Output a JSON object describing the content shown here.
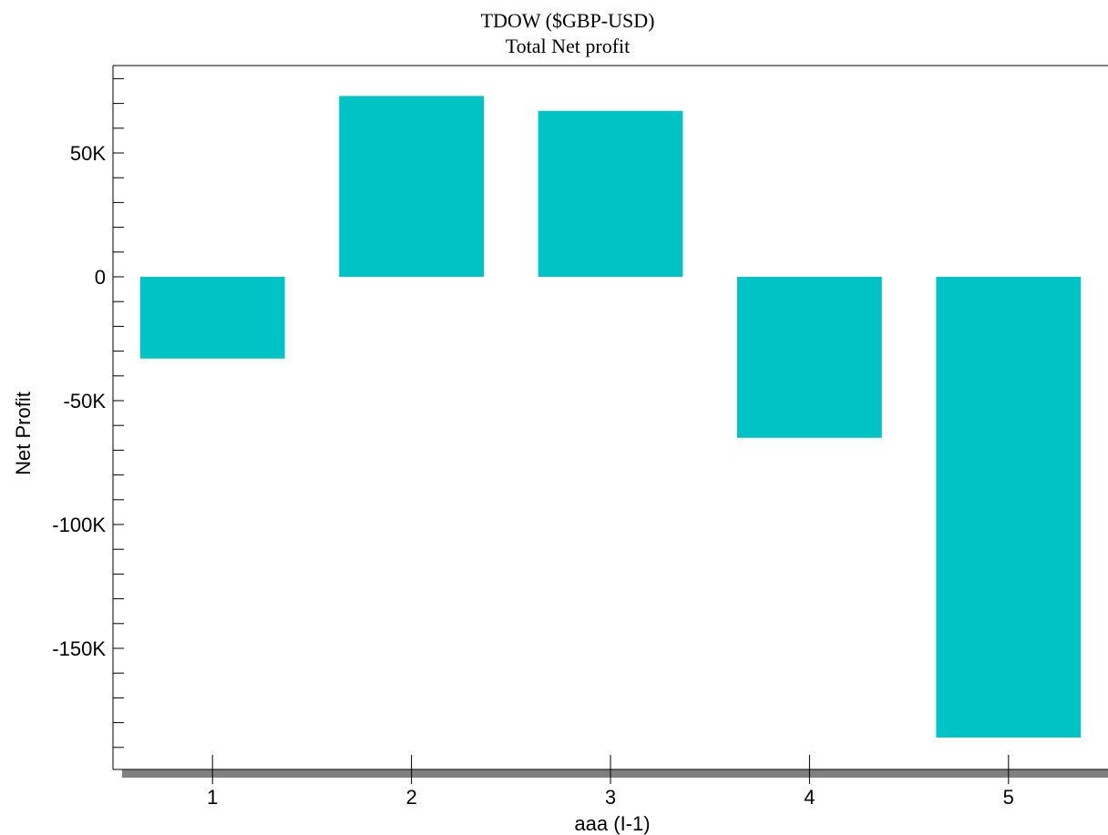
{
  "chart_data": {
    "type": "bar",
    "title": "TDOW ($GBP-USD)",
    "subtitle": "Total Net profit",
    "xlabel": "aaa (I-1)",
    "ylabel": "Net Profit",
    "categories": [
      "1",
      "2",
      "3",
      "4",
      "5"
    ],
    "values": [
      -33000,
      73000,
      67000,
      -65000,
      -186000
    ],
    "ylim": [
      -200000,
      85000
    ],
    "y_ticks": [
      50000,
      0,
      -50000,
      -100000,
      -150000
    ],
    "y_tick_labels": [
      "50K",
      "0",
      "-50K",
      "-100K",
      "-150K"
    ],
    "bar_color": "#00c3c6",
    "grid": false,
    "legend": "none"
  }
}
